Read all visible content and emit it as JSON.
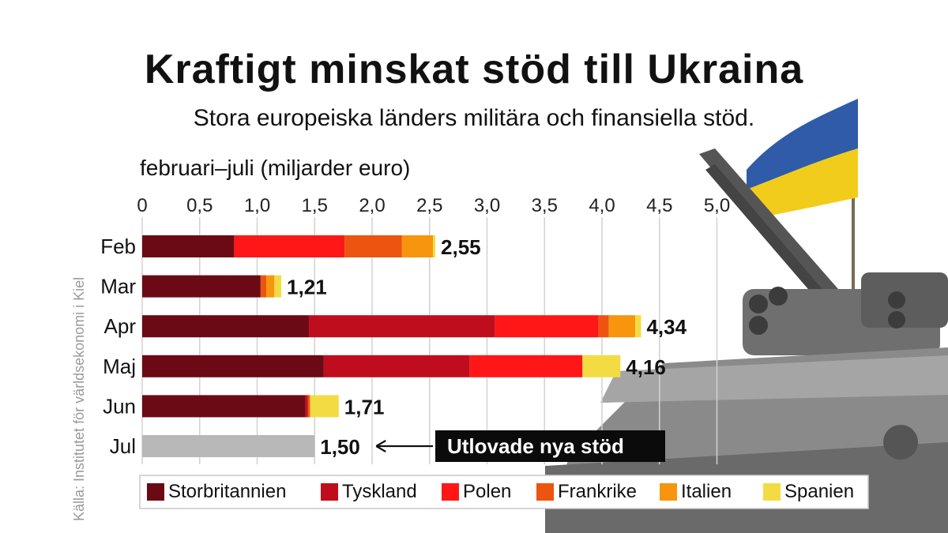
{
  "title": "Kraftigt minskat stöd till Ukraina",
  "subtitle": "Stora europeiska länders militära och finansiella stöd.",
  "source": "Källa: Institutet för världsekonomi i Kiel",
  "callout": "Utlovade nya stöd",
  "chart_data": {
    "type": "bar",
    "orientation": "horizontal",
    "stacked": true,
    "axis_title": "februari–juli (miljarder euro)",
    "xlim": [
      0,
      5.0
    ],
    "ticks": [
      "0",
      "0,5",
      "1,0",
      "1,5",
      "2,0",
      "2,5",
      "3,0",
      "3,5",
      "4,0",
      "4,5",
      "5,0"
    ],
    "tick_values": [
      0,
      0.5,
      1.0,
      1.5,
      2.0,
      2.5,
      3.0,
      3.5,
      4.0,
      4.5,
      5.0
    ],
    "grid": true,
    "legend_position": "bottom",
    "categories": [
      "Feb",
      "Mar",
      "Apr",
      "Maj",
      "Jun",
      "Jul"
    ],
    "totals": [
      "2,55",
      "1,21",
      "4,34",
      "4,16",
      "1,71",
      "1,50"
    ],
    "series": [
      {
        "name": "Storbritannien",
        "color": "#6b0a14",
        "values": [
          0.8,
          1.03,
          1.45,
          1.58,
          1.42,
          0
        ]
      },
      {
        "name": "Tyskland",
        "color": "#c00d1e",
        "values": [
          0,
          0,
          1.62,
          1.27,
          0.02,
          0
        ]
      },
      {
        "name": "Polen",
        "color": "#ff1717",
        "values": [
          0.96,
          0,
          0.9,
          0.98,
          0,
          0
        ]
      },
      {
        "name": "Frankrike",
        "color": "#ec5410",
        "values": [
          0.5,
          0.05,
          0.09,
          0,
          0.02,
          0
        ]
      },
      {
        "name": "Italien",
        "color": "#f7950d",
        "values": [
          0.27,
          0.07,
          0.23,
          0,
          0,
          0
        ]
      },
      {
        "name": "Spanien",
        "color": "#f3dc43",
        "values": [
          0.02,
          0.06,
          0.05,
          0.33,
          0.25,
          0
        ]
      },
      {
        "name": "",
        "color": "#b8b8b8",
        "values": [
          0,
          0,
          0,
          0,
          0,
          1.5
        ]
      }
    ]
  }
}
